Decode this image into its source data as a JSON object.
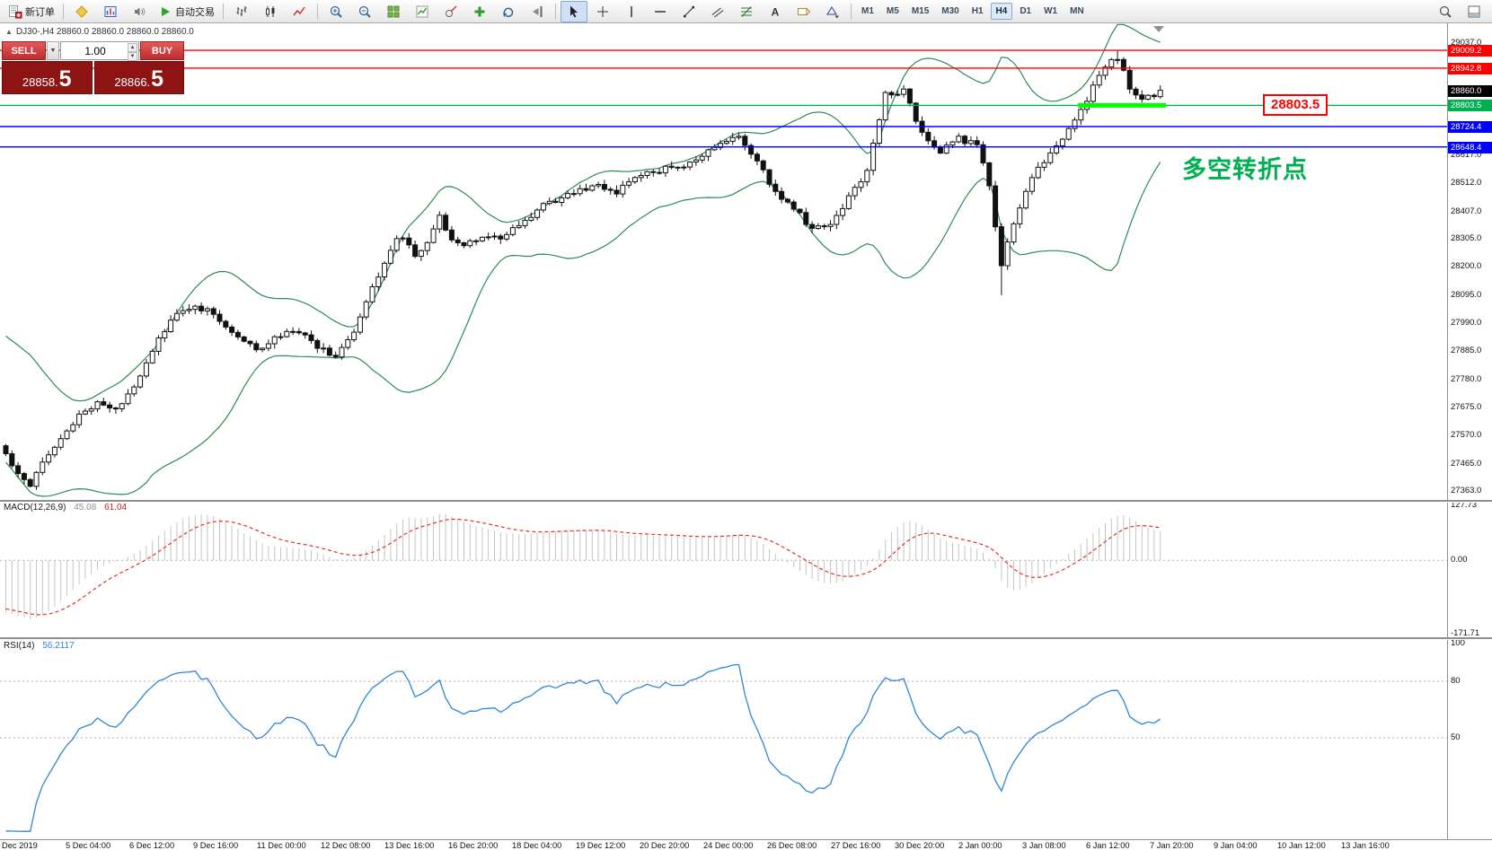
{
  "toolbar": {
    "items": [
      {
        "type": "button",
        "name": "new-order-button",
        "icon": "new-order-icon",
        "label": "新订单"
      },
      {
        "type": "sep"
      },
      {
        "type": "icon",
        "name": "market-watch-button",
        "icon": "diamond-icon"
      },
      {
        "type": "icon",
        "name": "depth-of-market-button",
        "icon": "depth-icon"
      },
      {
        "type": "icon",
        "name": "sounds-button",
        "icon": "sound-icon"
      },
      {
        "type": "button",
        "name": "auto-trading-button",
        "icon": "play-icon",
        "label": "自动交易"
      },
      {
        "type": "sep"
      },
      {
        "type": "icon",
        "name": "bar-chart-button",
        "icon": "bar-chart-icon"
      },
      {
        "type": "icon",
        "name": "candle-chart-button",
        "icon": "candle-chart-icon"
      },
      {
        "type": "icon",
        "name": "line-chart-button",
        "icon": "line-chart-icon"
      },
      {
        "type": "sep"
      },
      {
        "type": "icon",
        "name": "zoom-in-button",
        "icon": "zoom-in-icon"
      },
      {
        "type": "icon",
        "name": "zoom-out-button",
        "icon": "zoom-out-icon"
      },
      {
        "type": "icon",
        "name": "tile-windows-button",
        "icon": "tile-icon"
      },
      {
        "type": "icon",
        "name": "indicators-list-button",
        "icon": "indicators-icon"
      },
      {
        "type": "icon",
        "name": "objects-list-button",
        "icon": "objects-icon"
      },
      {
        "type": "icon",
        "name": "add-indicator-button",
        "icon": "add-icon"
      },
      {
        "type": "icon",
        "name": "auto-scroll-button",
        "icon": "autoscroll-icon"
      },
      {
        "type": "icon",
        "name": "chart-shift-button",
        "icon": "shift-icon"
      },
      {
        "type": "sep"
      },
      {
        "type": "icon",
        "name": "cursor-button",
        "icon": "cursor-icon",
        "active": true
      },
      {
        "type": "icon",
        "name": "crosshair-button",
        "icon": "crosshair-icon"
      },
      {
        "type": "icon",
        "name": "vertical-line-button",
        "icon": "vline-icon"
      },
      {
        "type": "icon",
        "name": "horizontal-line-button",
        "icon": "hline-icon"
      },
      {
        "type": "icon",
        "name": "trendline-button",
        "icon": "trendline-icon"
      },
      {
        "type": "icon",
        "name": "channel-button",
        "icon": "channel-icon"
      },
      {
        "type": "icon",
        "name": "fibonacci-button",
        "icon": "fibo-icon"
      },
      {
        "type": "icon",
        "name": "text-button",
        "icon": "text-icon"
      },
      {
        "type": "icon",
        "name": "label-button",
        "icon": "label-icon"
      },
      {
        "type": "icon",
        "name": "shapes-button",
        "icon": "shapes-icon"
      },
      {
        "type": "sep"
      },
      {
        "type": "tf",
        "name": "timeframe-m1",
        "label": "M1"
      },
      {
        "type": "tf",
        "name": "timeframe-m5",
        "label": "M5"
      },
      {
        "type": "tf",
        "name": "timeframe-m15",
        "label": "M15"
      },
      {
        "type": "tf",
        "name": "timeframe-m30",
        "label": "M30"
      },
      {
        "type": "tf",
        "name": "timeframe-h1",
        "label": "H1"
      },
      {
        "type": "tf",
        "name": "timeframe-h4",
        "label": "H4",
        "active": true
      },
      {
        "type": "tf",
        "name": "timeframe-d1",
        "label": "D1"
      },
      {
        "type": "tf",
        "name": "timeframe-w1",
        "label": "W1"
      },
      {
        "type": "tf",
        "name": "timeframe-mn",
        "label": "MN"
      },
      {
        "type": "spacer"
      },
      {
        "type": "icon",
        "name": "search-button",
        "icon": "search-icon"
      },
      {
        "type": "icon",
        "name": "panels-button",
        "icon": "panels-icon"
      }
    ]
  },
  "header": {
    "symbol_ohlc": "DJ30-,H4  28860.0 28860.0 28860.0 28860.0"
  },
  "trade_panel": {
    "sell_label": "SELL",
    "buy_label": "BUY",
    "volume": "1.00",
    "bid": "28858.5",
    "ask": "28866.5",
    "bid_main": "28858.",
    "bid_big": "5",
    "ask_main": "28866.",
    "ask_big": "5"
  },
  "callout": {
    "text": "28803.5",
    "color": "#FF0000"
  },
  "annotation": {
    "text": "多空转折点",
    "color": "#00B050"
  },
  "chart_data": {
    "type": "candlestick",
    "symbol": "DJ30-",
    "timeframe": "H4",
    "price_range_visible": [
      27363.0,
      29037.0
    ],
    "price_axis_ticks": [
      "29037.0",
      "28617.0",
      "28512.0",
      "28407.0",
      "28305.0",
      "28200.0",
      "28095.0",
      "27990.0",
      "27885.0",
      "27780.0",
      "27675.0",
      "27570.0",
      "27465.0",
      "27363.0"
    ],
    "horizontal_lines": [
      {
        "price": 29009.2,
        "label": "29009.2",
        "color": "#FF0000",
        "role": "resistance"
      },
      {
        "price": 28942.8,
        "label": "28942.8",
        "color": "#FF0000",
        "role": "resistance"
      },
      {
        "price": 28803.5,
        "label": "28803.5",
        "color": "#00B050",
        "role": "support"
      },
      {
        "price": 28724.4,
        "label": "28724.4",
        "color": "#0000FF",
        "role": "support"
      },
      {
        "price": 28648.4,
        "label": "28648.4",
        "color": "#0000FF",
        "role": "support"
      }
    ],
    "current_price": {
      "price": 28860.0,
      "label": "28860.0",
      "color": "#000000"
    },
    "support_highlight": {
      "price": 28803.5,
      "color": "#00FF00"
    },
    "indicators": {
      "bollinger": {
        "period": 20,
        "deviation": 2,
        "color": "#2E8B57"
      }
    },
    "candle_count": 190,
    "warmup_anchors": [
      [
        0,
        28160
      ],
      [
        10,
        27935
      ],
      [
        20,
        27705
      ],
      [
        29,
        27545
      ]
    ],
    "price_path_anchors": [
      [
        0,
        27500
      ],
      [
        2,
        27430
      ],
      [
        4,
        27390
      ],
      [
        6,
        27480
      ],
      [
        9,
        27560
      ],
      [
        12,
        27640
      ],
      [
        15,
        27700
      ],
      [
        18,
        27660
      ],
      [
        21,
        27760
      ],
      [
        24,
        27890
      ],
      [
        27,
        28000
      ],
      [
        30,
        28050
      ],
      [
        33,
        28040
      ],
      [
        36,
        27980
      ],
      [
        39,
        27915
      ],
      [
        42,
        27895
      ],
      [
        45,
        27945
      ],
      [
        48,
        27960
      ],
      [
        51,
        27905
      ],
      [
        54,
        27870
      ],
      [
        57,
        27950
      ],
      [
        60,
        28120
      ],
      [
        63,
        28270
      ],
      [
        65,
        28320
      ],
      [
        67,
        28230
      ],
      [
        69,
        28300
      ],
      [
        71,
        28390
      ],
      [
        73,
        28310
      ],
      [
        75,
        28275
      ],
      [
        78,
        28320
      ],
      [
        81,
        28300
      ],
      [
        84,
        28355
      ],
      [
        88,
        28430
      ],
      [
        92,
        28465
      ],
      [
        96,
        28505
      ],
      [
        100,
        28480
      ],
      [
        104,
        28545
      ],
      [
        108,
        28565
      ],
      [
        112,
        28585
      ],
      [
        116,
        28645
      ],
      [
        120,
        28690
      ],
      [
        123,
        28590
      ],
      [
        126,
        28480
      ],
      [
        129,
        28420
      ],
      [
        132,
        28340
      ],
      [
        135,
        28360
      ],
      [
        138,
        28460
      ],
      [
        141,
        28560
      ],
      [
        144,
        28850
      ],
      [
        147,
        28860
      ],
      [
        150,
        28700
      ],
      [
        153,
        28630
      ],
      [
        156,
        28680
      ],
      [
        159,
        28655
      ],
      [
        161,
        28500
      ],
      [
        163,
        28210
      ],
      [
        166,
        28430
      ],
      [
        169,
        28570
      ],
      [
        172,
        28650
      ],
      [
        175,
        28750
      ],
      [
        178,
        28870
      ],
      [
        180,
        28950
      ],
      [
        182,
        28985
      ],
      [
        184,
        28870
      ],
      [
        186,
        28815
      ],
      [
        188,
        28845
      ],
      [
        189,
        28860
      ]
    ],
    "spike_high": {
      "index": 182,
      "price": 29009.2
    },
    "spike_low": {
      "index": 163,
      "price": 28095.0
    },
    "time_labels": [
      "Dec 2019",
      "5 Dec 04:00",
      "6 Dec 12:00",
      "9 Dec 16:00",
      "11 Dec 00:00",
      "12 Dec 08:00",
      "13 Dec 16:00",
      "16 Dec 20:00",
      "18 Dec 04:00",
      "19 Dec 12:00",
      "20 Dec 20:00",
      "24 Dec 00:00",
      "26 Dec 08:00",
      "27 Dec 16:00",
      "30 Dec 20:00",
      "2 Jan 00:00",
      "3 Jan 08:00",
      "6 Jan 12:00",
      "7 Jan 20:00",
      "9 Jan 04:00",
      "10 Jan 12:00",
      "13 Jan 16:00"
    ]
  },
  "macd_panel": {
    "label": "MACD(12,26,9)",
    "value_main": "45.08",
    "value_signal": "61.04",
    "axis_values": [
      127.73,
      0,
      -171.71
    ],
    "axis_labels": [
      "127.73",
      "0.00",
      "-171.71"
    ],
    "histogram_color": "#c4c4c4",
    "signal_color": "#e03030"
  },
  "rsi_panel": {
    "label": "RSI(14)",
    "value": "56.2117",
    "axis_values": [
      100,
      80,
      50
    ],
    "axis_labels": [
      "100",
      "80",
      "50"
    ],
    "levels": [
      80,
      50
    ],
    "line_color": "#2f86d6"
  }
}
